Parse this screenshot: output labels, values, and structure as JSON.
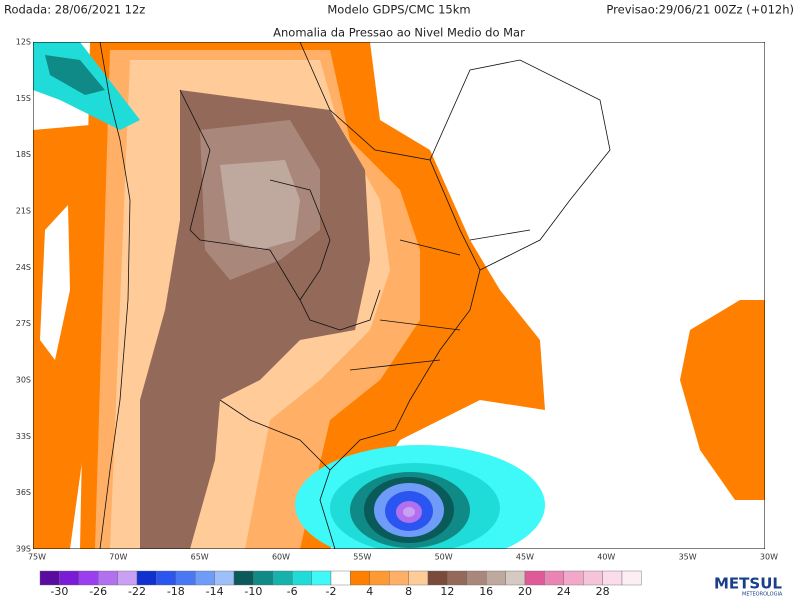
{
  "header": {
    "run": "Rodada: 28/06/2021 12z",
    "model": "Modelo GDPS/CMC 15km",
    "forecast": "Previsao:29/06/21 00Zz (+012h)",
    "title": "Anomalia da Pressao ao Nivel Medio do Mar"
  },
  "lat_labels": [
    "12S",
    "15S",
    "18S",
    "21S",
    "24S",
    "27S",
    "30S",
    "33S",
    "36S",
    "39S"
  ],
  "lon_labels": [
    "75W",
    "70W",
    "65W",
    "60W",
    "55W",
    "50W",
    "45W",
    "40W",
    "35W",
    "30W"
  ],
  "colorbar": {
    "colors": [
      "#5a0ca0",
      "#7a1bd8",
      "#9a3ff0",
      "#b070f0",
      "#c9a0f4",
      "#1030d0",
      "#2a55f0",
      "#4a78f4",
      "#6f9cf8",
      "#9ec0fa",
      "#0a5a5a",
      "#0f8a86",
      "#15b3ac",
      "#20dcd8",
      "#3ff8f8",
      "#ffffff",
      "#ff8000",
      "#ff9a33",
      "#ffb066",
      "#ffcc99",
      "#7a4a3a",
      "#93695a",
      "#a9887b",
      "#bfa89e",
      "#d5c9c2",
      "#e05a9a",
      "#ea84b4",
      "#f2a8c8",
      "#f6c4d8",
      "#fadcea",
      "#fdeef4"
    ],
    "ticks": [
      -30,
      -26,
      -22,
      -18,
      -14,
      -10,
      -6,
      -2,
      4,
      8,
      12,
      16,
      20,
      24,
      28
    ]
  },
  "logo": {
    "name": "METSUL",
    "tagline": "METEOROLOGIA"
  }
}
